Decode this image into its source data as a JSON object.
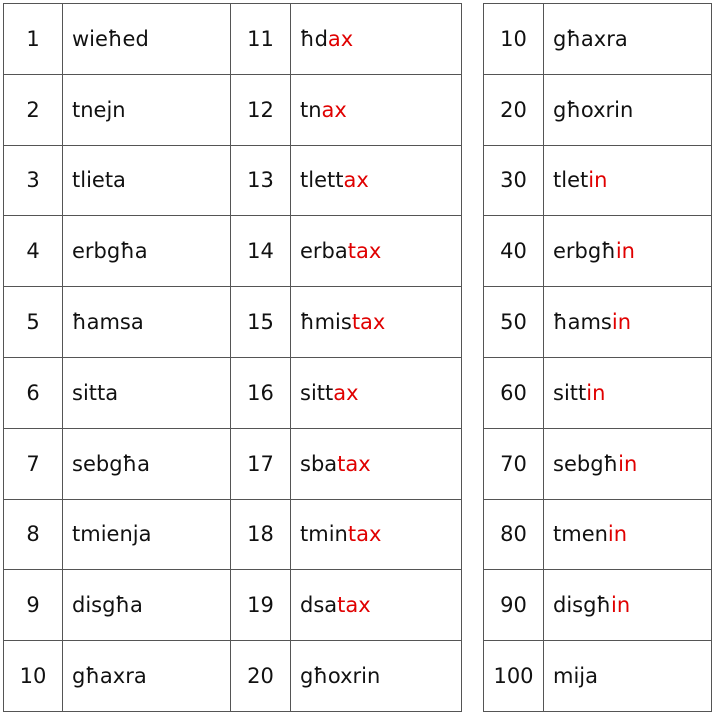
{
  "left_table": {
    "rows": [
      [
        {
          "n": "1",
          "w": "wieħed"
        },
        {
          "n": "11",
          "w": "ħd",
          "s": "ax"
        }
      ],
      [
        {
          "n": "2",
          "w": "tnejn"
        },
        {
          "n": "12",
          "w": "tn",
          "s": "ax"
        }
      ],
      [
        {
          "n": "3",
          "w": "tlieta"
        },
        {
          "n": "13",
          "w": "tlett",
          "s": "ax"
        }
      ],
      [
        {
          "n": "4",
          "w": "erbgħa"
        },
        {
          "n": "14",
          "w": "erba",
          "s": "tax"
        }
      ],
      [
        {
          "n": "5",
          "w": "ħamsa"
        },
        {
          "n": "15",
          "w": "ħmis",
          "s": "tax"
        }
      ],
      [
        {
          "n": "6",
          "w": "sitta"
        },
        {
          "n": "16",
          "w": "sitt",
          "s": "ax"
        }
      ],
      [
        {
          "n": "7",
          "w": "sebgħa"
        },
        {
          "n": "17",
          "w": "sba",
          "s": "tax"
        }
      ],
      [
        {
          "n": "8",
          "w": "tmienja"
        },
        {
          "n": "18",
          "w": "tmin",
          "s": "tax"
        }
      ],
      [
        {
          "n": "9",
          "w": "disgħa"
        },
        {
          "n": "19",
          "w": "dsa",
          "s": "tax"
        }
      ],
      [
        {
          "n": "10",
          "w": "għaxra"
        },
        {
          "n": "20",
          "w": "għoxrin"
        }
      ]
    ]
  },
  "right_table": {
    "rows": [
      [
        {
          "n": "10",
          "w": "għaxra"
        }
      ],
      [
        {
          "n": "20",
          "w": "għoxrin"
        }
      ],
      [
        {
          "n": "30",
          "w": "tlet",
          "s": "in"
        }
      ],
      [
        {
          "n": "40",
          "w": "erbgħ",
          "s": "in"
        }
      ],
      [
        {
          "n": "50",
          "w": "ħams",
          "s": "in"
        }
      ],
      [
        {
          "n": "60",
          "w": "sitt",
          "s": "in"
        }
      ],
      [
        {
          "n": "70",
          "w": "sebgħ",
          "s": "in"
        }
      ],
      [
        {
          "n": "80",
          "w": "tmen",
          "s": "in"
        }
      ],
      [
        {
          "n": "90",
          "w": "disgħ",
          "s": "in"
        }
      ],
      [
        {
          "n": "100",
          "w": "mija"
        }
      ]
    ]
  }
}
